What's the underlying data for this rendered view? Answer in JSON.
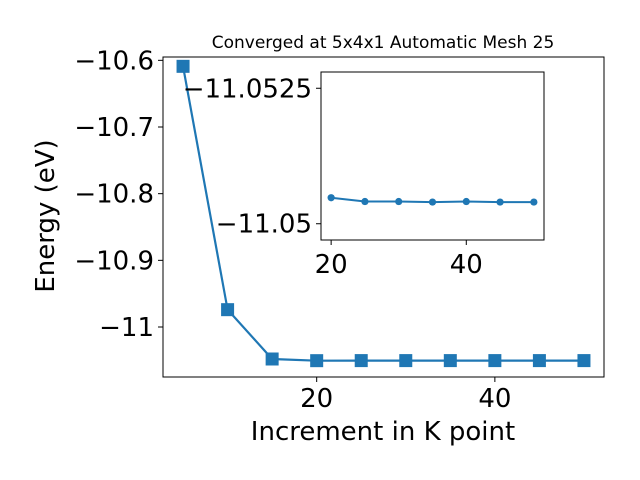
{
  "chart_data": [
    {
      "type": "line",
      "title": "Converged at 5x4x1 Automatic Mesh 25",
      "xlabel": "Increment in K point",
      "ylabel": "Energy (eV)",
      "xlim": [
        2.75,
        52.25
      ],
      "ylim": [
        -11.075,
        -10.595
      ],
      "x_ticks": [
        20,
        40
      ],
      "y_ticks": [
        -10.6,
        -10.7,
        -10.8,
        -10.9,
        -11.0
      ],
      "grid": false,
      "marker": "square",
      "color": "#1f77b4",
      "series": [
        {
          "x": [
            5,
            10,
            15,
            20,
            25,
            30,
            35,
            40,
            45,
            50
          ],
          "y": [
            -10.609,
            -10.974,
            -11.048,
            -11.0505,
            -11.0504,
            -11.0504,
            -11.0504,
            -11.0504,
            -11.0504,
            -11.0504
          ]
        }
      ]
    },
    {
      "type": "line",
      "title": "",
      "inset": true,
      "xlim": [
        18.5,
        51.5
      ],
      "ylim": [
        -11.0497,
        -11.0528
      ],
      "x_ticks": [
        20,
        40
      ],
      "y_ticks": [
        -11.0525,
        -11.05
      ],
      "grid": false,
      "marker": "circle",
      "color": "#1f77b4",
      "series": [
        {
          "x": [
            20,
            25,
            30,
            35,
            40,
            45,
            50
          ],
          "y": [
            -11.05048,
            -11.05041,
            -11.05041,
            -11.0504,
            -11.05041,
            -11.0504,
            -11.0504
          ]
        }
      ]
    }
  ]
}
